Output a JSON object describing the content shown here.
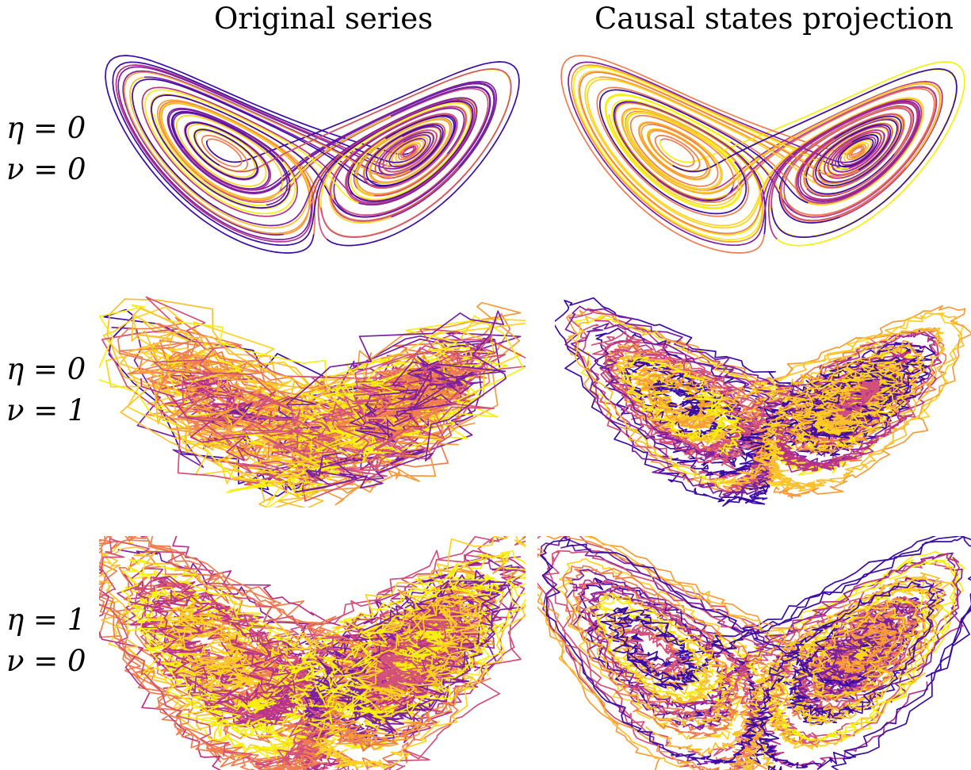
{
  "figure": {
    "column_titles": [
      "Original series",
      "Causal states projection"
    ],
    "row_labels": [
      [
        "η = 0",
        "ν = 0"
      ],
      [
        "η = 0",
        "ν = 1"
      ],
      [
        "η = 1",
        "ν = 0"
      ]
    ]
  },
  "colors": {
    "colormap": "plasma",
    "palette": [
      "#3a0ca3",
      "#7a1fa2",
      "#b83289",
      "#d2517b",
      "#ef7d4f",
      "#f89c3a",
      "#fbc02d",
      "#ffd31f",
      "#f5f00e"
    ]
  },
  "chart_data": [
    {
      "type": "line",
      "panel": "original-row1",
      "noise_eta": 0,
      "noise_nu": 0,
      "axes": "hidden"
    },
    {
      "type": "line",
      "panel": "causal-row1",
      "noise_eta": 0,
      "noise_nu": 0,
      "axes": "hidden"
    },
    {
      "type": "line",
      "panel": "original-row2",
      "noise_eta": 0,
      "noise_nu": 1,
      "axes": "hidden"
    },
    {
      "type": "line",
      "panel": "causal-row2",
      "noise_eta": 0,
      "noise_nu": 1,
      "axes": "hidden"
    },
    {
      "type": "line",
      "panel": "original-row3",
      "noise_eta": 1,
      "noise_nu": 0,
      "axes": "hidden"
    },
    {
      "type": "line",
      "panel": "causal-row3",
      "noise_eta": 1,
      "noise_nu": 0,
      "axes": "hidden"
    }
  ]
}
